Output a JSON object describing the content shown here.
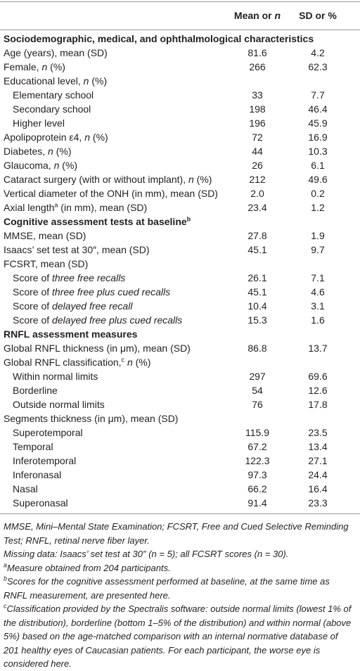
{
  "table": {
    "header": [
      [
        {
          "text": "Mean or "
        },
        {
          "text": "n",
          "style": "italic"
        }
      ],
      "SD or %"
    ],
    "rows": [
      {
        "section": "Sociodemographic, medical, and ophthalmological characteristics"
      },
      {
        "label": "Age (years), mean (SD)",
        "mean": "81.6",
        "sd": "4.2"
      },
      {
        "label": [
          {
            "text": "Female, "
          },
          {
            "text": "n",
            "style": "italic"
          },
          {
            "text": " (%)"
          }
        ],
        "mean": "266",
        "sd": "62.3"
      },
      {
        "label": [
          {
            "text": "Educational level, "
          },
          {
            "text": "n",
            "style": "italic"
          },
          {
            "text": " (%)"
          }
        ]
      },
      {
        "label": "Elementary school",
        "level": 1,
        "mean": "33",
        "sd": "7.7"
      },
      {
        "label": "Secondary school",
        "level": 1,
        "mean": "198",
        "sd": "46.4"
      },
      {
        "label": "Higher level",
        "level": 1,
        "mean": "196",
        "sd": "45.9"
      },
      {
        "label": [
          {
            "text": "Apolipoprotein ε4, "
          },
          {
            "text": "n",
            "style": "italic"
          },
          {
            "text": " (%)"
          }
        ],
        "mean": "72",
        "sd": "16.9"
      },
      {
        "label": [
          {
            "text": "Diabetes, "
          },
          {
            "text": "n",
            "style": "italic"
          },
          {
            "text": " (%)"
          }
        ],
        "mean": "44",
        "sd": "10.3"
      },
      {
        "label": [
          {
            "text": "Glaucoma, "
          },
          {
            "text": "n",
            "style": "italic"
          },
          {
            "text": " (%)"
          }
        ],
        "mean": "26",
        "sd": "6.1"
      },
      {
        "label": [
          {
            "text": "Cataract surgery (with or without implant), "
          },
          {
            "text": "n",
            "style": "italic"
          },
          {
            "text": " (%)"
          }
        ],
        "mean": "212",
        "sd": "49.6"
      },
      {
        "label": "Vertical diameter of the ONH (in mm), mean (SD)",
        "mean": "2.0",
        "sd": "0.2"
      },
      {
        "label": [
          {
            "text": "Axial length"
          },
          {
            "text": "a",
            "style": "sup"
          },
          {
            "text": " (in mm), mean (SD)"
          }
        ],
        "mean": "23.4",
        "sd": "1.2"
      },
      {
        "section": [
          {
            "text": "Cognitive assessment tests at baseline"
          },
          {
            "text": "b",
            "style": "sup"
          }
        ]
      },
      {
        "label": "MMSE, mean (SD)",
        "mean": "27.8",
        "sd": "1.9"
      },
      {
        "label": "Isaacs’ set test at 30″, mean (SD)",
        "mean": "45.1",
        "sd": "9.7"
      },
      {
        "label": "FCSRT, mean (SD)"
      },
      {
        "label": [
          {
            "text": "Score of "
          },
          {
            "text": "three free recalls",
            "style": "italic"
          }
        ],
        "level": 1,
        "mean": "26.1",
        "sd": "7.1"
      },
      {
        "label": [
          {
            "text": "Score of "
          },
          {
            "text": "three free plus cued recalls",
            "style": "italic"
          }
        ],
        "level": 1,
        "mean": "45.1",
        "sd": "4.6"
      },
      {
        "label": [
          {
            "text": "Score of "
          },
          {
            "text": "delayed free recall",
            "style": "italic"
          }
        ],
        "level": 1,
        "mean": "10.4",
        "sd": "3.1"
      },
      {
        "label": [
          {
            "text": "Score of "
          },
          {
            "text": "delayed free plus cued recalls",
            "style": "italic"
          }
        ],
        "level": 1,
        "mean": "15.3",
        "sd": "1.6"
      },
      {
        "section": "RNFL assessment measures"
      },
      {
        "label": "Global RNFL thickness (in μm), mean (SD)",
        "mean": "86.8",
        "sd": "13.7"
      },
      {
        "label": [
          {
            "text": "Global RNFL classification,"
          },
          {
            "text": "c",
            "style": "sup"
          },
          {
            "text": " "
          },
          {
            "text": "n",
            "style": "italic"
          },
          {
            "text": " (%)"
          }
        ]
      },
      {
        "label": "Within normal limits",
        "level": 1,
        "mean": "297",
        "sd": "69.6"
      },
      {
        "label": "Borderline",
        "level": 1,
        "mean": "54",
        "sd": "12.6"
      },
      {
        "label": "Outside normal limits",
        "level": 1,
        "mean": "76",
        "sd": "17.8"
      },
      {
        "label": "Segments thickness (in μm), mean (SD)"
      },
      {
        "label": "Superotemporal",
        "level": 1,
        "mean": "115.9",
        "sd": "23.5"
      },
      {
        "label": "Temporal",
        "level": 1,
        "mean": "67.2",
        "sd": "13.4"
      },
      {
        "label": "Inferotemporal",
        "level": 1,
        "mean": "122.3",
        "sd": "27.1"
      },
      {
        "label": "Inferonasal",
        "level": 1,
        "mean": "97.3",
        "sd": "24.4"
      },
      {
        "label": "Nasal",
        "level": 1,
        "mean": "66.2",
        "sd": "16.4"
      },
      {
        "label": "Superonasal",
        "level": 1,
        "mean": "91.4",
        "sd": "23.3"
      }
    ],
    "footnotes": [
      "MMSE, Mini–Mental State Examination; FCSRT, Free and Cued Selective Reminding Test; RNFL, retinal nerve fiber layer.",
      "Missing data: Isaacs’ set test at 30″ (n = 5); all FCSRT scores (n = 30).",
      [
        {
          "text": "a",
          "style": "sup"
        },
        {
          "text": "Measure obtained from 204 participants."
        }
      ],
      [
        {
          "text": "b",
          "style": "sup"
        },
        {
          "text": "Scores for the cognitive assessment performed at baseline, at the same time as RNFL measurement, are presented here."
        }
      ],
      [
        {
          "text": "c",
          "style": "sup"
        },
        {
          "text": "Classification provided by the Spectralis software: outside normal limits (lowest 1% of the distribution), borderline (bottom 1–5% of the distribution) and within normal (above 5%) based on the age-matched comparison with an internal normative database of 201 healthy eyes of Caucasian patients. For each participant, the worse eye is considered here."
        }
      ]
    ]
  }
}
